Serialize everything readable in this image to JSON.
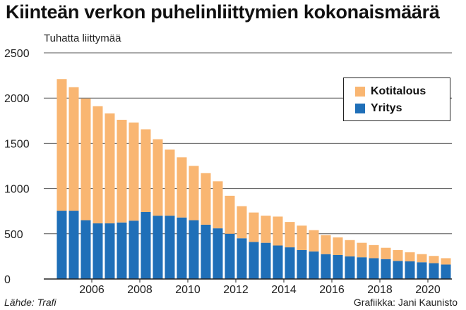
{
  "title": "Kiinteän verkon puhelinliittymien kokonaismäärä",
  "source": "Lähde: Trafi",
  "credit": "Grafiikka: Jani Kaunisto",
  "colors": {
    "kotitalous": "#f9b672",
    "yritys": "#1f6fb8",
    "grid": "#555555",
    "axis": "#222222"
  },
  "chart_data": {
    "type": "bar",
    "stacked": true,
    "title": "Kiinteän verkon puhelinliittymien kokonaismäärä",
    "ylabel": "Tuhatta liittymää",
    "xlabel": "",
    "ylim": [
      0,
      2500
    ],
    "yticks": [
      0,
      500,
      1000,
      1500,
      2000,
      2500
    ],
    "xticks": [
      "2006",
      "2008",
      "2010",
      "2012",
      "2014",
      "2016",
      "2018",
      "2020"
    ],
    "x_range": [
      2004.0,
      2021.0
    ],
    "grid": true,
    "legend": "top-right",
    "categories": [
      2004.75,
      2005.25,
      2005.75,
      2006.25,
      2006.75,
      2007.25,
      2007.75,
      2008.25,
      2008.75,
      2009.25,
      2009.75,
      2010.25,
      2010.75,
      2011.25,
      2011.75,
      2012.25,
      2012.75,
      2013.25,
      2013.75,
      2014.25,
      2014.75,
      2015.25,
      2015.75,
      2016.25,
      2016.75,
      2017.25,
      2017.75,
      2018.25,
      2018.75,
      2019.25,
      2019.75,
      2020.25,
      2020.75
    ],
    "series": [
      {
        "name": "Yritys",
        "values": [
          755,
          755,
          650,
          615,
          615,
          625,
          645,
          740,
          700,
          700,
          680,
          650,
          600,
          560,
          500,
          450,
          410,
          400,
          370,
          350,
          320,
          305,
          275,
          265,
          250,
          240,
          230,
          220,
          200,
          195,
          185,
          175,
          160
        ]
      },
      {
        "name": "Kotitalous",
        "values": [
          1455,
          1365,
          1345,
          1295,
          1215,
          1135,
          1085,
          915,
          845,
          730,
          665,
          600,
          570,
          520,
          420,
          355,
          325,
          300,
          320,
          280,
          270,
          235,
          210,
          195,
          180,
          160,
          145,
          125,
          120,
          100,
          90,
          80,
          70
        ]
      }
    ]
  }
}
